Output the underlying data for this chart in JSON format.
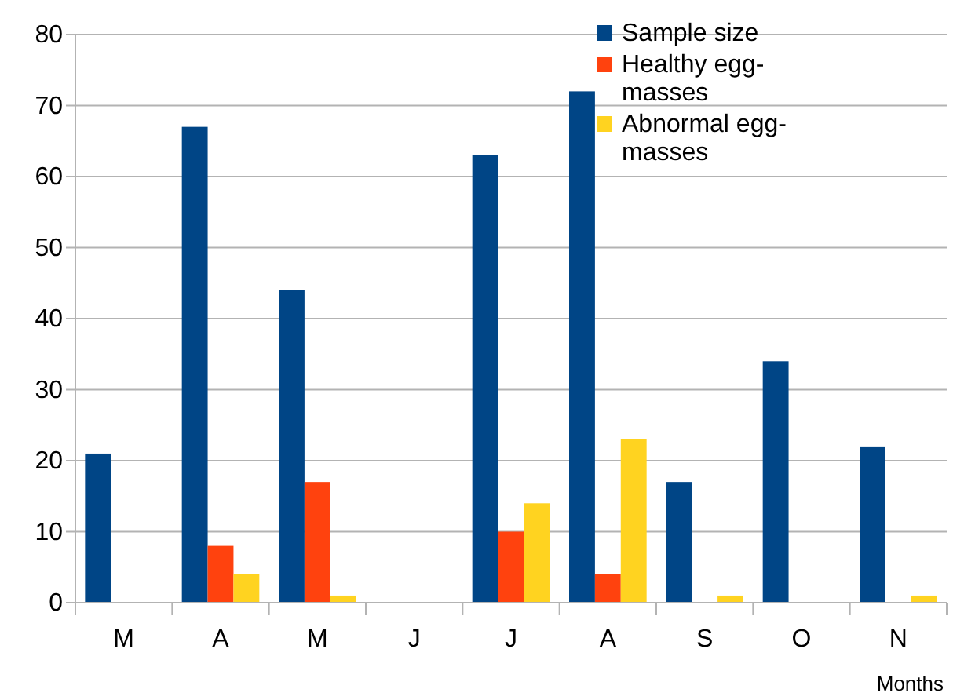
{
  "chart_data": {
    "type": "bar",
    "xlabel": "Months",
    "categories": [
      "M",
      "A",
      "M",
      "J",
      "J",
      "A",
      "S",
      "O",
      "N"
    ],
    "series": [
      {
        "name": "Sample size",
        "color": "#004586",
        "values": [
          21,
          67,
          44,
          0,
          63,
          72,
          17,
          34,
          22
        ]
      },
      {
        "name": "Healthy egg-masses",
        "color": "#ff420e",
        "values": [
          0,
          8,
          17,
          0,
          10,
          4,
          0,
          0,
          0
        ]
      },
      {
        "name": "Abnormal egg-masses",
        "color": "#ffd320",
        "values": [
          0,
          4,
          1,
          0,
          14,
          23,
          1,
          0,
          1
        ]
      }
    ],
    "ylim": [
      0,
      80
    ],
    "yticks": [
      0,
      10,
      20,
      30,
      40,
      50,
      60,
      70,
      80
    ],
    "grid": "y",
    "legend": "top right"
  }
}
